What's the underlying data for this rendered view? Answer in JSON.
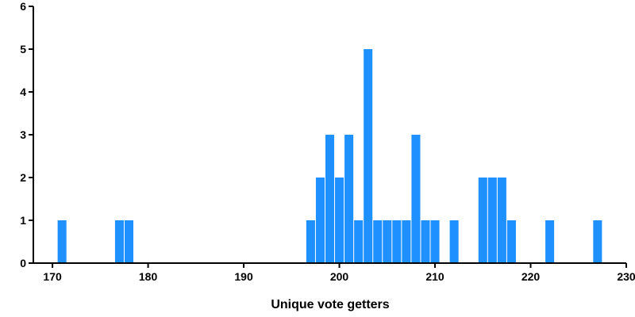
{
  "chart_data": {
    "type": "bar",
    "title": "",
    "xlabel": "Unique vote getters",
    "ylabel": "",
    "xlim": [
      168,
      230
    ],
    "ylim": [
      0,
      6
    ],
    "x_ticks": [
      170,
      180,
      190,
      200,
      210,
      220,
      230
    ],
    "y_ticks": [
      0,
      1,
      2,
      3,
      4,
      5,
      6
    ],
    "bar_color": "#1e90ff",
    "grid": false,
    "legend": "none",
    "bins": [
      {
        "x": 171,
        "count": 1
      },
      {
        "x": 177,
        "count": 1
      },
      {
        "x": 178,
        "count": 1
      },
      {
        "x": 197,
        "count": 1
      },
      {
        "x": 198,
        "count": 2
      },
      {
        "x": 199,
        "count": 3
      },
      {
        "x": 200,
        "count": 2
      },
      {
        "x": 201,
        "count": 3
      },
      {
        "x": 202,
        "count": 1
      },
      {
        "x": 203,
        "count": 5
      },
      {
        "x": 204,
        "count": 1
      },
      {
        "x": 205,
        "count": 1
      },
      {
        "x": 206,
        "count": 1
      },
      {
        "x": 207,
        "count": 1
      },
      {
        "x": 208,
        "count": 3
      },
      {
        "x": 209,
        "count": 1
      },
      {
        "x": 210,
        "count": 1
      },
      {
        "x": 212,
        "count": 1
      },
      {
        "x": 215,
        "count": 2
      },
      {
        "x": 216,
        "count": 2
      },
      {
        "x": 217,
        "count": 2
      },
      {
        "x": 218,
        "count": 1
      },
      {
        "x": 222,
        "count": 1
      },
      {
        "x": 227,
        "count": 1
      }
    ]
  }
}
